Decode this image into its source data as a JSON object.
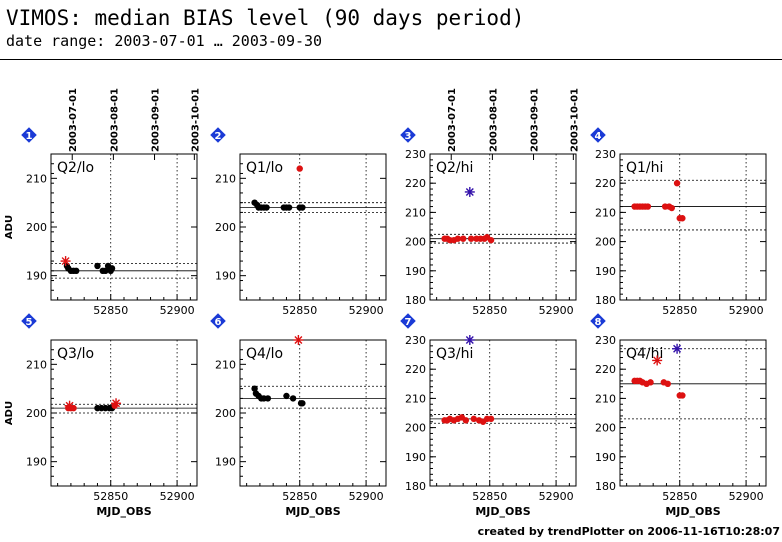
{
  "title": "VIMOS: median BIAS level (90 days period)",
  "subtitle": "date range: 2003-07-01 … 2003-09-30",
  "footer": "created by trendPlotter on 2006-11-16T10:28:07",
  "colors": {
    "data": "#dd1111",
    "black": "#000000",
    "outlier": "#3311aa",
    "badge": "#1a3ad6"
  },
  "chart_data": [
    {
      "type": "scatter",
      "number": "1",
      "label": "Q2/lo",
      "ylabel": "ADU",
      "xlabel": "",
      "ylim": [
        185,
        215
      ],
      "yticks": [
        190,
        200,
        210
      ],
      "xticks": [
        52850,
        52900
      ],
      "date_labels": [
        "2003-07-01",
        "2003-08-01",
        "2003-09-01",
        "2003-10-01"
      ],
      "median": 191,
      "band": [
        189.5,
        192.5
      ],
      "points": [
        {
          "x": 52817,
          "y": 192,
          "c": "black"
        },
        {
          "x": 52818,
          "y": 191.5,
          "c": "black"
        },
        {
          "x": 52820,
          "y": 191,
          "c": "black"
        },
        {
          "x": 52822,
          "y": 191,
          "c": "black"
        },
        {
          "x": 52824,
          "y": 191,
          "c": "black"
        },
        {
          "x": 52840,
          "y": 192,
          "c": "black"
        },
        {
          "x": 52844,
          "y": 191,
          "c": "black"
        },
        {
          "x": 52846,
          "y": 191,
          "c": "black"
        },
        {
          "x": 52848,
          "y": 192,
          "c": "black"
        },
        {
          "x": 52850,
          "y": 191,
          "c": "black"
        },
        {
          "x": 52851,
          "y": 191.5,
          "c": "black"
        }
      ],
      "markers": [
        {
          "x": 52816,
          "y": 193,
          "c": "data"
        }
      ]
    },
    {
      "type": "scatter",
      "number": "2",
      "label": "Q1/lo",
      "ylabel": "",
      "xlabel": "",
      "ylim": [
        185,
        215
      ],
      "yticks": [
        190,
        200,
        210
      ],
      "xticks": [
        52850,
        52900
      ],
      "date_labels": [],
      "median": 204,
      "band": [
        203,
        205
      ],
      "points": [
        {
          "x": 52816,
          "y": 205,
          "c": "black"
        },
        {
          "x": 52818,
          "y": 204.5,
          "c": "black"
        },
        {
          "x": 52819,
          "y": 204,
          "c": "black"
        },
        {
          "x": 52821,
          "y": 204,
          "c": "black"
        },
        {
          "x": 52823,
          "y": 204,
          "c": "black"
        },
        {
          "x": 52825,
          "y": 204,
          "c": "black"
        },
        {
          "x": 52838,
          "y": 204,
          "c": "black"
        },
        {
          "x": 52840,
          "y": 204,
          "c": "black"
        },
        {
          "x": 52842,
          "y": 204,
          "c": "black"
        },
        {
          "x": 52850,
          "y": 204,
          "c": "black"
        },
        {
          "x": 52852,
          "y": 204,
          "c": "black"
        },
        {
          "x": 52850,
          "y": 212,
          "c": "data"
        }
      ],
      "markers": []
    },
    {
      "type": "scatter",
      "number": "3",
      "label": "Q2/hi",
      "ylabel": "",
      "xlabel": "",
      "ylim": [
        180,
        230
      ],
      "yticks": [
        180,
        190,
        200,
        210,
        220,
        230
      ],
      "xticks": [
        52850,
        52900
      ],
      "date_labels": [
        "2003-07-01",
        "2003-08-01",
        "2003-09-01",
        "2003-10-01"
      ],
      "median": 201,
      "band": [
        199.5,
        202.5
      ],
      "points": [
        {
          "x": 52816,
          "y": 201,
          "c": "data"
        },
        {
          "x": 52818,
          "y": 201,
          "c": "data"
        },
        {
          "x": 52820,
          "y": 200.5,
          "c": "data"
        },
        {
          "x": 52823,
          "y": 200.5,
          "c": "data"
        },
        {
          "x": 52826,
          "y": 201,
          "c": "data"
        },
        {
          "x": 52830,
          "y": 201,
          "c": "data"
        },
        {
          "x": 52836,
          "y": 201,
          "c": "data"
        },
        {
          "x": 52840,
          "y": 201,
          "c": "data"
        },
        {
          "x": 52843,
          "y": 201,
          "c": "data"
        },
        {
          "x": 52846,
          "y": 201,
          "c": "data"
        },
        {
          "x": 52848,
          "y": 201.5,
          "c": "data"
        },
        {
          "x": 52851,
          "y": 200.5,
          "c": "data"
        }
      ],
      "markers": [
        {
          "x": 52835,
          "y": 217,
          "c": "outlier"
        }
      ]
    },
    {
      "type": "scatter",
      "number": "4",
      "label": "Q1/hi",
      "ylabel": "",
      "xlabel": "",
      "ylim": [
        180,
        230
      ],
      "yticks": [
        180,
        190,
        200,
        210,
        220,
        230
      ],
      "xticks": [
        52850,
        52900
      ],
      "date_labels": [],
      "median": 212,
      "band": [
        204,
        221
      ],
      "points": [
        {
          "x": 52816,
          "y": 212,
          "c": "data"
        },
        {
          "x": 52818,
          "y": 212,
          "c": "data"
        },
        {
          "x": 52820,
          "y": 212,
          "c": "data"
        },
        {
          "x": 52822,
          "y": 212,
          "c": "data"
        },
        {
          "x": 52824,
          "y": 212,
          "c": "data"
        },
        {
          "x": 52826,
          "y": 212,
          "c": "data"
        },
        {
          "x": 52839,
          "y": 212,
          "c": "data"
        },
        {
          "x": 52842,
          "y": 212,
          "c": "data"
        },
        {
          "x": 52844,
          "y": 211.5,
          "c": "data"
        },
        {
          "x": 52848,
          "y": 220,
          "c": "data"
        },
        {
          "x": 52850,
          "y": 208,
          "c": "data"
        },
        {
          "x": 52852,
          "y": 208,
          "c": "data"
        }
      ],
      "markers": []
    },
    {
      "type": "scatter",
      "number": "5",
      "label": "Q3/lo",
      "ylabel": "ADU",
      "xlabel": "MJD_OBS",
      "ylim": [
        185,
        215
      ],
      "yticks": [
        190,
        200,
        210
      ],
      "xticks": [
        52850,
        52900
      ],
      "date_labels": [],
      "median": 201,
      "band": [
        200,
        201.8
      ],
      "points": [
        {
          "x": 52818,
          "y": 201,
          "c": "data"
        },
        {
          "x": 52820,
          "y": 201,
          "c": "data"
        },
        {
          "x": 52822,
          "y": 201,
          "c": "data"
        },
        {
          "x": 52840,
          "y": 201,
          "c": "black"
        },
        {
          "x": 52843,
          "y": 201,
          "c": "black"
        },
        {
          "x": 52846,
          "y": 201,
          "c": "black"
        },
        {
          "x": 52849,
          "y": 201,
          "c": "black"
        },
        {
          "x": 52851,
          "y": 201,
          "c": "black"
        },
        {
          "x": 52853,
          "y": 201.5,
          "c": "data"
        }
      ],
      "markers": [
        {
          "x": 52819,
          "y": 201.5,
          "c": "data"
        },
        {
          "x": 52854,
          "y": 202,
          "c": "data"
        }
      ]
    },
    {
      "type": "scatter",
      "number": "6",
      "label": "Q4/lo",
      "ylabel": "",
      "xlabel": "MJD_OBS",
      "ylim": [
        185,
        215
      ],
      "yticks": [
        190,
        200,
        210
      ],
      "xticks": [
        52850,
        52900
      ],
      "date_labels": [],
      "median": 203,
      "band": [
        201,
        205.5
      ],
      "points": [
        {
          "x": 52816,
          "y": 205,
          "c": "black"
        },
        {
          "x": 52817,
          "y": 204,
          "c": "black"
        },
        {
          "x": 52819,
          "y": 203.5,
          "c": "black"
        },
        {
          "x": 52821,
          "y": 203,
          "c": "black"
        },
        {
          "x": 52823,
          "y": 203,
          "c": "black"
        },
        {
          "x": 52826,
          "y": 203,
          "c": "black"
        },
        {
          "x": 52840,
          "y": 203.5,
          "c": "black"
        },
        {
          "x": 52845,
          "y": 203,
          "c": "black"
        },
        {
          "x": 52851,
          "y": 202,
          "c": "black"
        },
        {
          "x": 52852,
          "y": 202,
          "c": "black"
        }
      ],
      "markers": [
        {
          "x": 52849,
          "y": 215,
          "c": "data"
        }
      ]
    },
    {
      "type": "scatter",
      "number": "7",
      "label": "Q3/hi",
      "ylabel": "",
      "xlabel": "MJD_OBS",
      "ylim": [
        180,
        230
      ],
      "yticks": [
        180,
        190,
        200,
        210,
        220,
        230
      ],
      "xticks": [
        52850,
        52900
      ],
      "date_labels": [],
      "median": 203,
      "band": [
        201.5,
        204.5
      ],
      "points": [
        {
          "x": 52816,
          "y": 202.5,
          "c": "data"
        },
        {
          "x": 52818,
          "y": 202.5,
          "c": "data"
        },
        {
          "x": 52820,
          "y": 203,
          "c": "data"
        },
        {
          "x": 52823,
          "y": 202.5,
          "c": "data"
        },
        {
          "x": 52826,
          "y": 203,
          "c": "data"
        },
        {
          "x": 52829,
          "y": 203.5,
          "c": "data"
        },
        {
          "x": 52832,
          "y": 202.5,
          "c": "data"
        },
        {
          "x": 52838,
          "y": 203,
          "c": "data"
        },
        {
          "x": 52842,
          "y": 202.5,
          "c": "data"
        },
        {
          "x": 52845,
          "y": 202,
          "c": "data"
        },
        {
          "x": 52848,
          "y": 203,
          "c": "data"
        },
        {
          "x": 52851,
          "y": 203,
          "c": "data"
        }
      ],
      "markers": [
        {
          "x": 52835,
          "y": 230,
          "c": "outlier"
        }
      ]
    },
    {
      "type": "scatter",
      "number": "8",
      "label": "Q4/hi",
      "ylabel": "",
      "xlabel": "MJD_OBS",
      "ylim": [
        180,
        230
      ],
      "yticks": [
        180,
        190,
        200,
        210,
        220,
        230
      ],
      "xticks": [
        52850,
        52900
      ],
      "date_labels": [],
      "median": 215,
      "band": [
        203,
        227
      ],
      "points": [
        {
          "x": 52816,
          "y": 216,
          "c": "data"
        },
        {
          "x": 52818,
          "y": 216,
          "c": "data"
        },
        {
          "x": 52820,
          "y": 216,
          "c": "data"
        },
        {
          "x": 52822,
          "y": 215.5,
          "c": "data"
        },
        {
          "x": 52825,
          "y": 215,
          "c": "data"
        },
        {
          "x": 52828,
          "y": 215.5,
          "c": "data"
        },
        {
          "x": 52838,
          "y": 215.5,
          "c": "data"
        },
        {
          "x": 52841,
          "y": 215,
          "c": "data"
        },
        {
          "x": 52850,
          "y": 211,
          "c": "data"
        },
        {
          "x": 52852,
          "y": 211,
          "c": "data"
        }
      ],
      "markers": [
        {
          "x": 52833,
          "y": 223,
          "c": "data"
        },
        {
          "x": 52848,
          "y": 227,
          "c": "outlier"
        }
      ]
    }
  ]
}
